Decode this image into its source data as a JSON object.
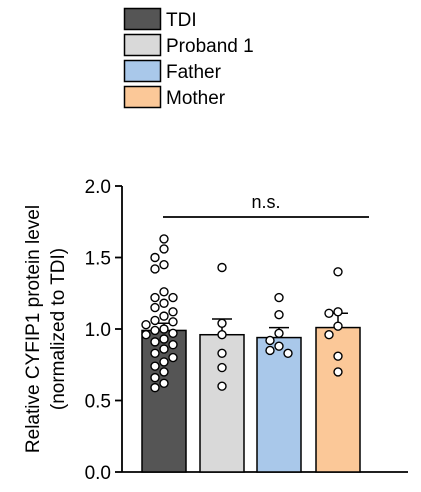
{
  "chart_data": {
    "type": "bar",
    "categories": [
      "TDI",
      "Proband 1",
      "Father",
      "Mother"
    ],
    "colors": [
      "#555555",
      "#d9d9d9",
      "#a9c8ea",
      "#fbc898"
    ],
    "values": [
      0.99,
      0.96,
      0.94,
      1.01
    ],
    "sem": [
      0.05,
      0.11,
      0.07,
      0.1
    ],
    "points": [
      [
        1.63,
        1.56,
        1.5,
        1.45,
        1.42,
        1.26,
        1.22,
        1.22,
        1.18,
        1.15,
        1.12,
        1.09,
        1.06,
        1.05,
        1.03,
        1.0,
        0.99,
        0.97,
        0.96,
        0.93,
        0.91,
        0.89,
        0.86,
        0.83,
        0.8,
        0.77,
        0.74,
        0.7,
        0.66,
        0.62,
        0.59
      ],
      [
        1.43,
        1.04,
        0.96,
        0.83,
        0.73,
        0.6
      ],
      [
        1.22,
        1.1,
        0.97,
        0.92,
        0.88,
        0.85,
        0.83
      ],
      [
        1.4,
        1.12,
        1.11,
        1.02,
        0.96,
        0.81,
        0.7
      ]
    ],
    "ylabel": [
      "Relative CYFIP1 protein level",
      "(normalized to TDI)"
    ],
    "ylim": [
      0,
      2.0
    ],
    "yticks": [
      "0.0",
      "0.5",
      "1.0",
      "1.5",
      "2.0"
    ],
    "annotation": "n.s.",
    "legend": [
      "TDI",
      "Proband 1",
      "Father",
      "Mother"
    ],
    "legend_position": "top"
  }
}
